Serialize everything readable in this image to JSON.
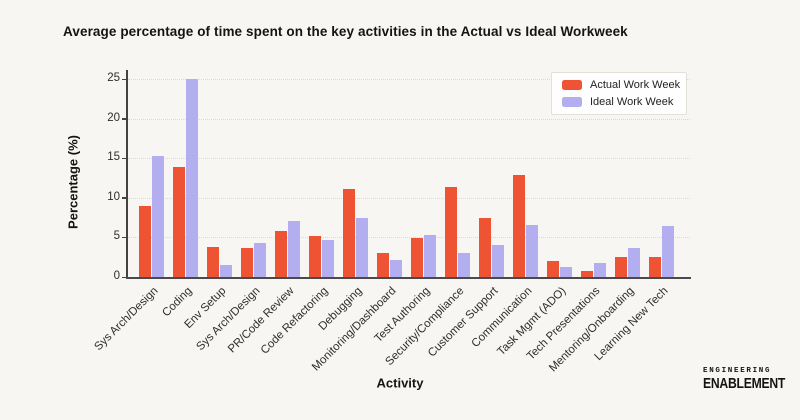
{
  "chart_data": {
    "type": "bar",
    "title": "Average percentage of time spent on the key activities in the Actual vs Ideal Workweek",
    "xlabel": "Activity",
    "ylabel": "Percentage (%)",
    "ylim": [
      0,
      25
    ],
    "yticks": [
      0,
      5,
      10,
      15,
      20,
      25
    ],
    "grid": "horizontal-dotted",
    "legend_position": "top-right",
    "categories": [
      "Sys Arch/Design",
      "Coding",
      "Env Setup",
      "Sys Arch/Design",
      "PR/Code Review",
      "Code Refactoring",
      "Debugging",
      "Monitoring/Dashboard",
      "Test Authoring",
      "Security/Compliance",
      "Customer Support",
      "Communication",
      "Task Mgmt (ADO)",
      "Tech Presentations",
      "Mentoring/Onboarding",
      "Learning New Tech"
    ],
    "series": [
      {
        "name": "Actual Work Week",
        "color": "#ee5434",
        "values": [
          9.0,
          13.9,
          3.8,
          3.6,
          5.8,
          5.2,
          11.1,
          3.0,
          4.9,
          11.4,
          7.4,
          12.9,
          2.0,
          0.7,
          2.5,
          2.5
        ]
      },
      {
        "name": "Ideal Work Week",
        "color": "#b2aeef",
        "values": [
          15.3,
          25.0,
          1.5,
          4.3,
          7.1,
          4.7,
          7.5,
          2.2,
          5.3,
          3.0,
          4.0,
          6.6,
          1.3,
          1.8,
          3.7,
          6.5
        ]
      }
    ]
  },
  "branding": {
    "line1": "ENGINEERING",
    "line2": "ENABLEMENT"
  }
}
